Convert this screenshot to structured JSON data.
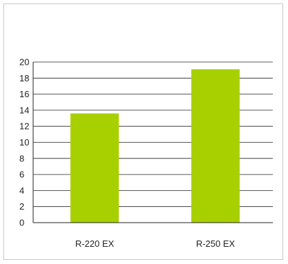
{
  "colors": {
    "bar": "#a8d000",
    "grid": "#222222",
    "frame": "#c8c8c8"
  },
  "chart_data": {
    "type": "bar",
    "categories": [
      "R-220 EX",
      "R-250 EX"
    ],
    "values": [
      13.6,
      19.1
    ],
    "title": "",
    "xlabel": "",
    "ylabel": "",
    "ylim": [
      0,
      20
    ],
    "yticks": [
      "0",
      "2",
      "4",
      "6",
      "8",
      "10",
      "12",
      "14",
      "16",
      "18",
      "20"
    ],
    "grid": true,
    "legend": "none"
  }
}
